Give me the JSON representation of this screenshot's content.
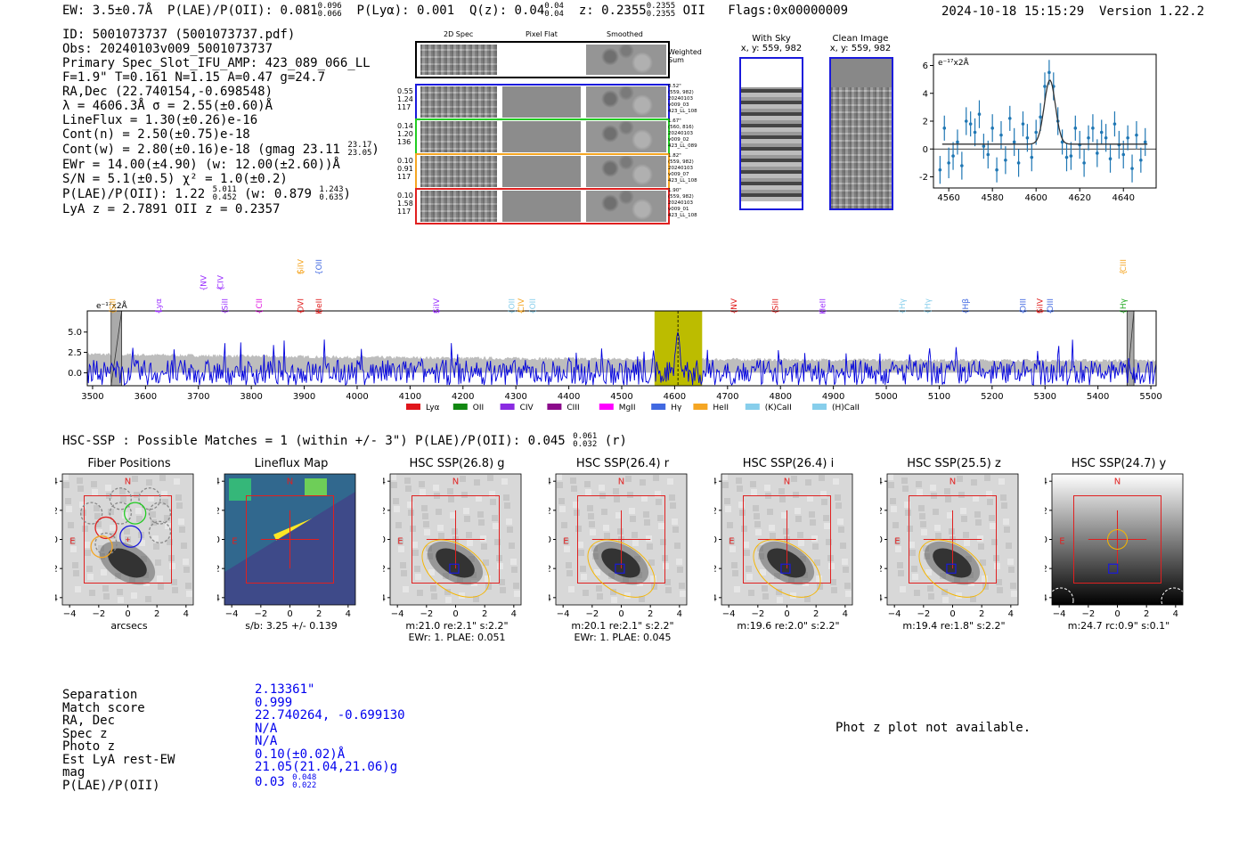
{
  "header": {
    "ew": "EW: 3.5±0.7Å",
    "plae_label": "P(LAE)/P(OII): 0.081",
    "plae_hi": "0.096",
    "plae_lo": "0.066",
    "plya": "P(Lyα): 0.001",
    "qz_label": "Q(z): 0.04",
    "qz_hi": "0.04",
    "qz_lo": "0.04",
    "z_label": "z: 0.2355",
    "z_hi": "0.2355",
    "z_lo": "0.2355",
    "z_line": "OII",
    "flags": "Flags:0x00000009",
    "datetime": "2024-10-18 15:15:29",
    "version": "Version 1.22.2"
  },
  "info": {
    "id": "ID: 5001073737 (5001073737.pdf)",
    "obs": "Obs: 20240103v009_5001073737",
    "slot": "Primary Spec_Slot_IFU_AMP: 423_089_066_LL",
    "params": "F=1.9\"  T=0.161  N=1.15  A=0.47  g=24.7",
    "radec": "RA,Dec (22.740154,-0.698548)",
    "lambda": "λ = 4606.3Å  σ = 2.55(±0.60)Å",
    "lineflux": "LineFlux = 1.30(±0.26)e-16",
    "contn": "Cont(n) = 2.50(±0.75)e-18",
    "contw": "Cont(w) = 2.80(±0.16)e-18 (gmag 23.11",
    "contw_hi": "23.17",
    "contw_lo": "23.05",
    "contw_end": ")",
    "ewr": "EWr = 14.00(±4.90) (w: 12.00(±2.60))Å",
    "sn": "S/N = 5.1(±0.5)  χ² = 1.0(±0.2)",
    "plae": "P(LAE)/P(OII): 1.22",
    "plae_hi": "5.011",
    "plae_lo": "0.452",
    "plae_w": "(w: 0.879",
    "plae_w_hi": "1.243",
    "plae_w_lo": "0.635",
    "plae_w_end": ")",
    "lyaz": "LyA z = 2.7891  OII z = 0.2357"
  },
  "cutouts": {
    "col_headers": [
      "2D Spec",
      "Pixel Flat",
      "Smoothed"
    ],
    "weighted_sum": "Weighted Sum",
    "rows": [
      {
        "left": [
          "0.55",
          "1.24",
          "117"
        ],
        "right": [
          "0.52\"",
          "(559, 982)",
          "20240103",
          "v009_03",
          "423_LL_108"
        ],
        "color": "#1a1adc"
      },
      {
        "left": [
          "0.14",
          "1.20",
          "136"
        ],
        "right": [
          "1.67\"",
          "(560, 816)",
          "20240103",
          "v009_02",
          "423_LL_089"
        ],
        "color": "#22cc22"
      },
      {
        "left": [
          "0.10",
          "0.91",
          "117"
        ],
        "right": [
          "1.82\"",
          "(559, 982)",
          "20240103",
          "v009_07",
          "423_LL_108"
        ],
        "color": "#f5a623"
      },
      {
        "left": [
          "0.10",
          "1.58",
          "117"
        ],
        "right": [
          "1.90\"",
          "(559, 982)",
          "20240103",
          "v009_01",
          "423_LL_108"
        ],
        "color": "#e02020"
      }
    ]
  },
  "sky": {
    "with_sky_title": "With Sky",
    "with_sky_xy": "x, y: 559, 982",
    "clean_title": "Clean Image",
    "clean_xy": "x, y: 559, 982"
  },
  "zoom_chart": {
    "type": "line",
    "unit": "e⁻¹⁷x2Å",
    "xlim": [
      4553,
      4655
    ],
    "ylim": [
      -2.8,
      6.8
    ],
    "xticks": [
      4560,
      4580,
      4600,
      4620,
      4640
    ],
    "yticks": [
      -2,
      0,
      2,
      4,
      6
    ],
    "x": [
      4556,
      4558,
      4560,
      4562,
      4564,
      4566,
      4568,
      4570,
      4572,
      4574,
      4576,
      4578,
      4580,
      4582,
      4584,
      4586,
      4588,
      4590,
      4592,
      4594,
      4596,
      4598,
      4600,
      4602,
      4604,
      4606,
      4608,
      4610,
      4612,
      4614,
      4616,
      4618,
      4620,
      4622,
      4624,
      4626,
      4628,
      4630,
      4632,
      4634,
      4636,
      4638,
      4640,
      4642,
      4644,
      4646,
      4648,
      4650
    ],
    "y": [
      -1.5,
      1.5,
      -1.0,
      -0.5,
      0.5,
      -1.2,
      2.0,
      1.8,
      1.2,
      2.5,
      0.2,
      -0.4,
      1.5,
      -1.5,
      1.0,
      -0.8,
      2.2,
      0.5,
      -1.0,
      1.8,
      0.8,
      -0.6,
      1.2,
      2.3,
      4.5,
      5.5,
      4.5,
      2.0,
      0.5,
      -0.6,
      -0.5,
      1.5,
      0.3,
      -1.0,
      0.8,
      1.5,
      -0.3,
      1.2,
      0.8,
      -0.7,
      1.8,
      0.3,
      -0.4,
      0.8,
      -1.4,
      1.0,
      -0.8,
      0.5
    ],
    "err": [
      1.0,
      0.9,
      1.1,
      1.0,
      0.9,
      1.0,
      1.0,
      0.9,
      1.0,
      1.0,
      0.9,
      1.0,
      1.0,
      0.9,
      1.0,
      1.0,
      0.9,
      1.0,
      1.0,
      0.9,
      1.0,
      1.0,
      0.9,
      1.0,
      1.0,
      0.9,
      1.0,
      1.0,
      0.9,
      1.0,
      1.0,
      0.9,
      1.0,
      1.0,
      0.9,
      1.0,
      1.0,
      0.9,
      1.0,
      1.0,
      0.9,
      1.0,
      1.0,
      0.9,
      1.0,
      1.0,
      0.9,
      1.0
    ],
    "fit_center": 4606.3,
    "fit_sigma": 2.55,
    "fit_amp": 4.6
  },
  "spectrum": {
    "type": "line",
    "unit": "e⁻¹⁷x2Å",
    "xlim": [
      3490,
      5510
    ],
    "ylim": [
      -1.6,
      7.6
    ],
    "xticks": [
      3500,
      3600,
      3700,
      3800,
      3900,
      4000,
      4100,
      4200,
      4300,
      4400,
      4500,
      4600,
      4700,
      4800,
      4900,
      5000,
      5100,
      5200,
      5300,
      5400,
      5500
    ],
    "yticks": [
      0.0,
      2.5,
      5.0
    ],
    "highlight": [
      4562,
      4652
    ],
    "line_center": 4606.3,
    "masks": [
      [
        3535,
        3555
      ],
      [
        5455,
        5468
      ]
    ],
    "peak": 5.0,
    "lines": [
      {
        "label": "SiII",
        "x": 3538,
        "color": "#f5a623",
        "row": 2
      },
      {
        "label": "Lyα",
        "x": 3625,
        "color": "#9b30ff",
        "row": 2
      },
      {
        "label": "NV",
        "x": 3710,
        "color": "#9b30ff",
        "row": 1
      },
      {
        "label": "SiII",
        "x": 3750,
        "color": "#9b30ff",
        "row": 2
      },
      {
        "label": "CIV",
        "x": 3742,
        "color": "#9b30ff",
        "row": 1
      },
      {
        "label": "CII",
        "x": 3815,
        "color": "#e010e0",
        "row": 2
      },
      {
        "label": "SiIV",
        "x": 3893,
        "color": "#f5a623",
        "row": 0
      },
      {
        "label": "OVI",
        "x": 3893,
        "color": "#e02020",
        "row": 2
      },
      {
        "label": "OII",
        "x": 3928,
        "color": "#4169e1",
        "row": 0
      },
      {
        "label": "HeII",
        "x": 3928,
        "color": "#e02020",
        "row": 2
      },
      {
        "label": "SiIV",
        "x": 4150,
        "color": "#9b30ff",
        "row": 2
      },
      {
        "label": "OII",
        "x": 4292,
        "color": "#87ceeb",
        "row": 2
      },
      {
        "label": "CIV",
        "x": 4310,
        "color": "#f5a623",
        "row": 2
      },
      {
        "label": "OII",
        "x": 4332,
        "color": "#87ceeb",
        "row": 2
      },
      {
        "label": "NV",
        "x": 4712,
        "color": "#e02020",
        "row": 2
      },
      {
        "label": "SiII",
        "x": 4790,
        "color": "#e02020",
        "row": 2
      },
      {
        "label": "HeII",
        "x": 4880,
        "color": "#9b30ff",
        "row": 2
      },
      {
        "label": "Hγ",
        "x": 5030,
        "color": "#87ceeb",
        "row": 2
      },
      {
        "label": "Hγ",
        "x": 5078,
        "color": "#87ceeb",
        "row": 2
      },
      {
        "label": "Hβ",
        "x": 5150,
        "color": "#4169e1",
        "row": 2
      },
      {
        "label": "OIII",
        "x": 5258,
        "color": "#4169e1",
        "row": 2
      },
      {
        "label": "SiIV",
        "x": 5290,
        "color": "#e02020",
        "row": 2
      },
      {
        "label": "OIII",
        "x": 5310,
        "color": "#4169e1",
        "row": 2
      },
      {
        "label": "CIII",
        "x": 5448,
        "color": "#f5a623",
        "row": 0
      },
      {
        "label": "Hγ",
        "x": 5448,
        "color": "#22aa22",
        "row": 2
      }
    ],
    "legend": [
      {
        "label": "Lyα",
        "color": "#e0151b"
      },
      {
        "label": "OII",
        "color": "#118811"
      },
      {
        "label": "CIV",
        "color": "#8a2be2"
      },
      {
        "label": "CIII",
        "color": "#8b0a8b"
      },
      {
        "label": "MgII",
        "color": "#ff00ff"
      },
      {
        "label": "Hγ",
        "color": "#4169e1"
      },
      {
        "label": "HeII",
        "color": "#f5a623"
      },
      {
        "label": "(K)CaII",
        "color": "#87ceeb"
      },
      {
        "label": "(H)CaII",
        "color": "#87ceeb"
      }
    ]
  },
  "hsc": {
    "summary": "HSC-SSP : Possible Matches = 1 (within +/- 3\")  P(LAE)/P(OII): 0.045",
    "summary_hi": "0.061",
    "summary_lo": "0.032",
    "summary_end": "(r)",
    "panels": [
      {
        "title": "Fiber Positions",
        "caption": [
          "arcsecs"
        ]
      },
      {
        "title": "Lineflux Map",
        "caption": [
          "s/b: 3.25 +/- 0.139"
        ]
      },
      {
        "title": "HSC SSP(26.8) g",
        "caption": [
          "m:21.0  re:2.1\"  s:2.2\"",
          "EWr: 1. PLAE: 0.051"
        ]
      },
      {
        "title": "HSC SSP(26.4) r",
        "caption": [
          "m:20.1  re:2.1\"  s:2.2\"",
          "EWr: 1. PLAE: 0.045"
        ]
      },
      {
        "title": "HSC SSP(26.4) i",
        "caption": [
          "m:19.6  re:2.0\"  s:2.2\""
        ]
      },
      {
        "title": "HSC SSP(25.5) z",
        "caption": [
          "m:19.4  re:1.8\"  s:2.2\""
        ]
      },
      {
        "title": "HSC SSP(24.7) y",
        "caption": [
          "m:24.7  rc:0.9\"  s:0.1\""
        ]
      }
    ],
    "ticks": [
      "−4",
      "−2",
      "0",
      "2",
      "4"
    ],
    "n_label": "N",
    "e_label": "E"
  },
  "match": {
    "labels": [
      "Separation",
      "Match score",
      "RA, Dec",
      "Spec z",
      "Photo z",
      "Est LyA rest-EW",
      "mag",
      "P(LAE)/P(OII)"
    ],
    "values": [
      "2.13361\"",
      "0.999",
      "22.740264, -0.699130",
      "N/A",
      "N/A",
      "0.10(±0.02)Å",
      "21.05(21.04,21.06)g",
      "0.03"
    ],
    "plae_hi": "0.048",
    "plae_lo": "0.022"
  },
  "photz_note": "Phot z plot not available."
}
